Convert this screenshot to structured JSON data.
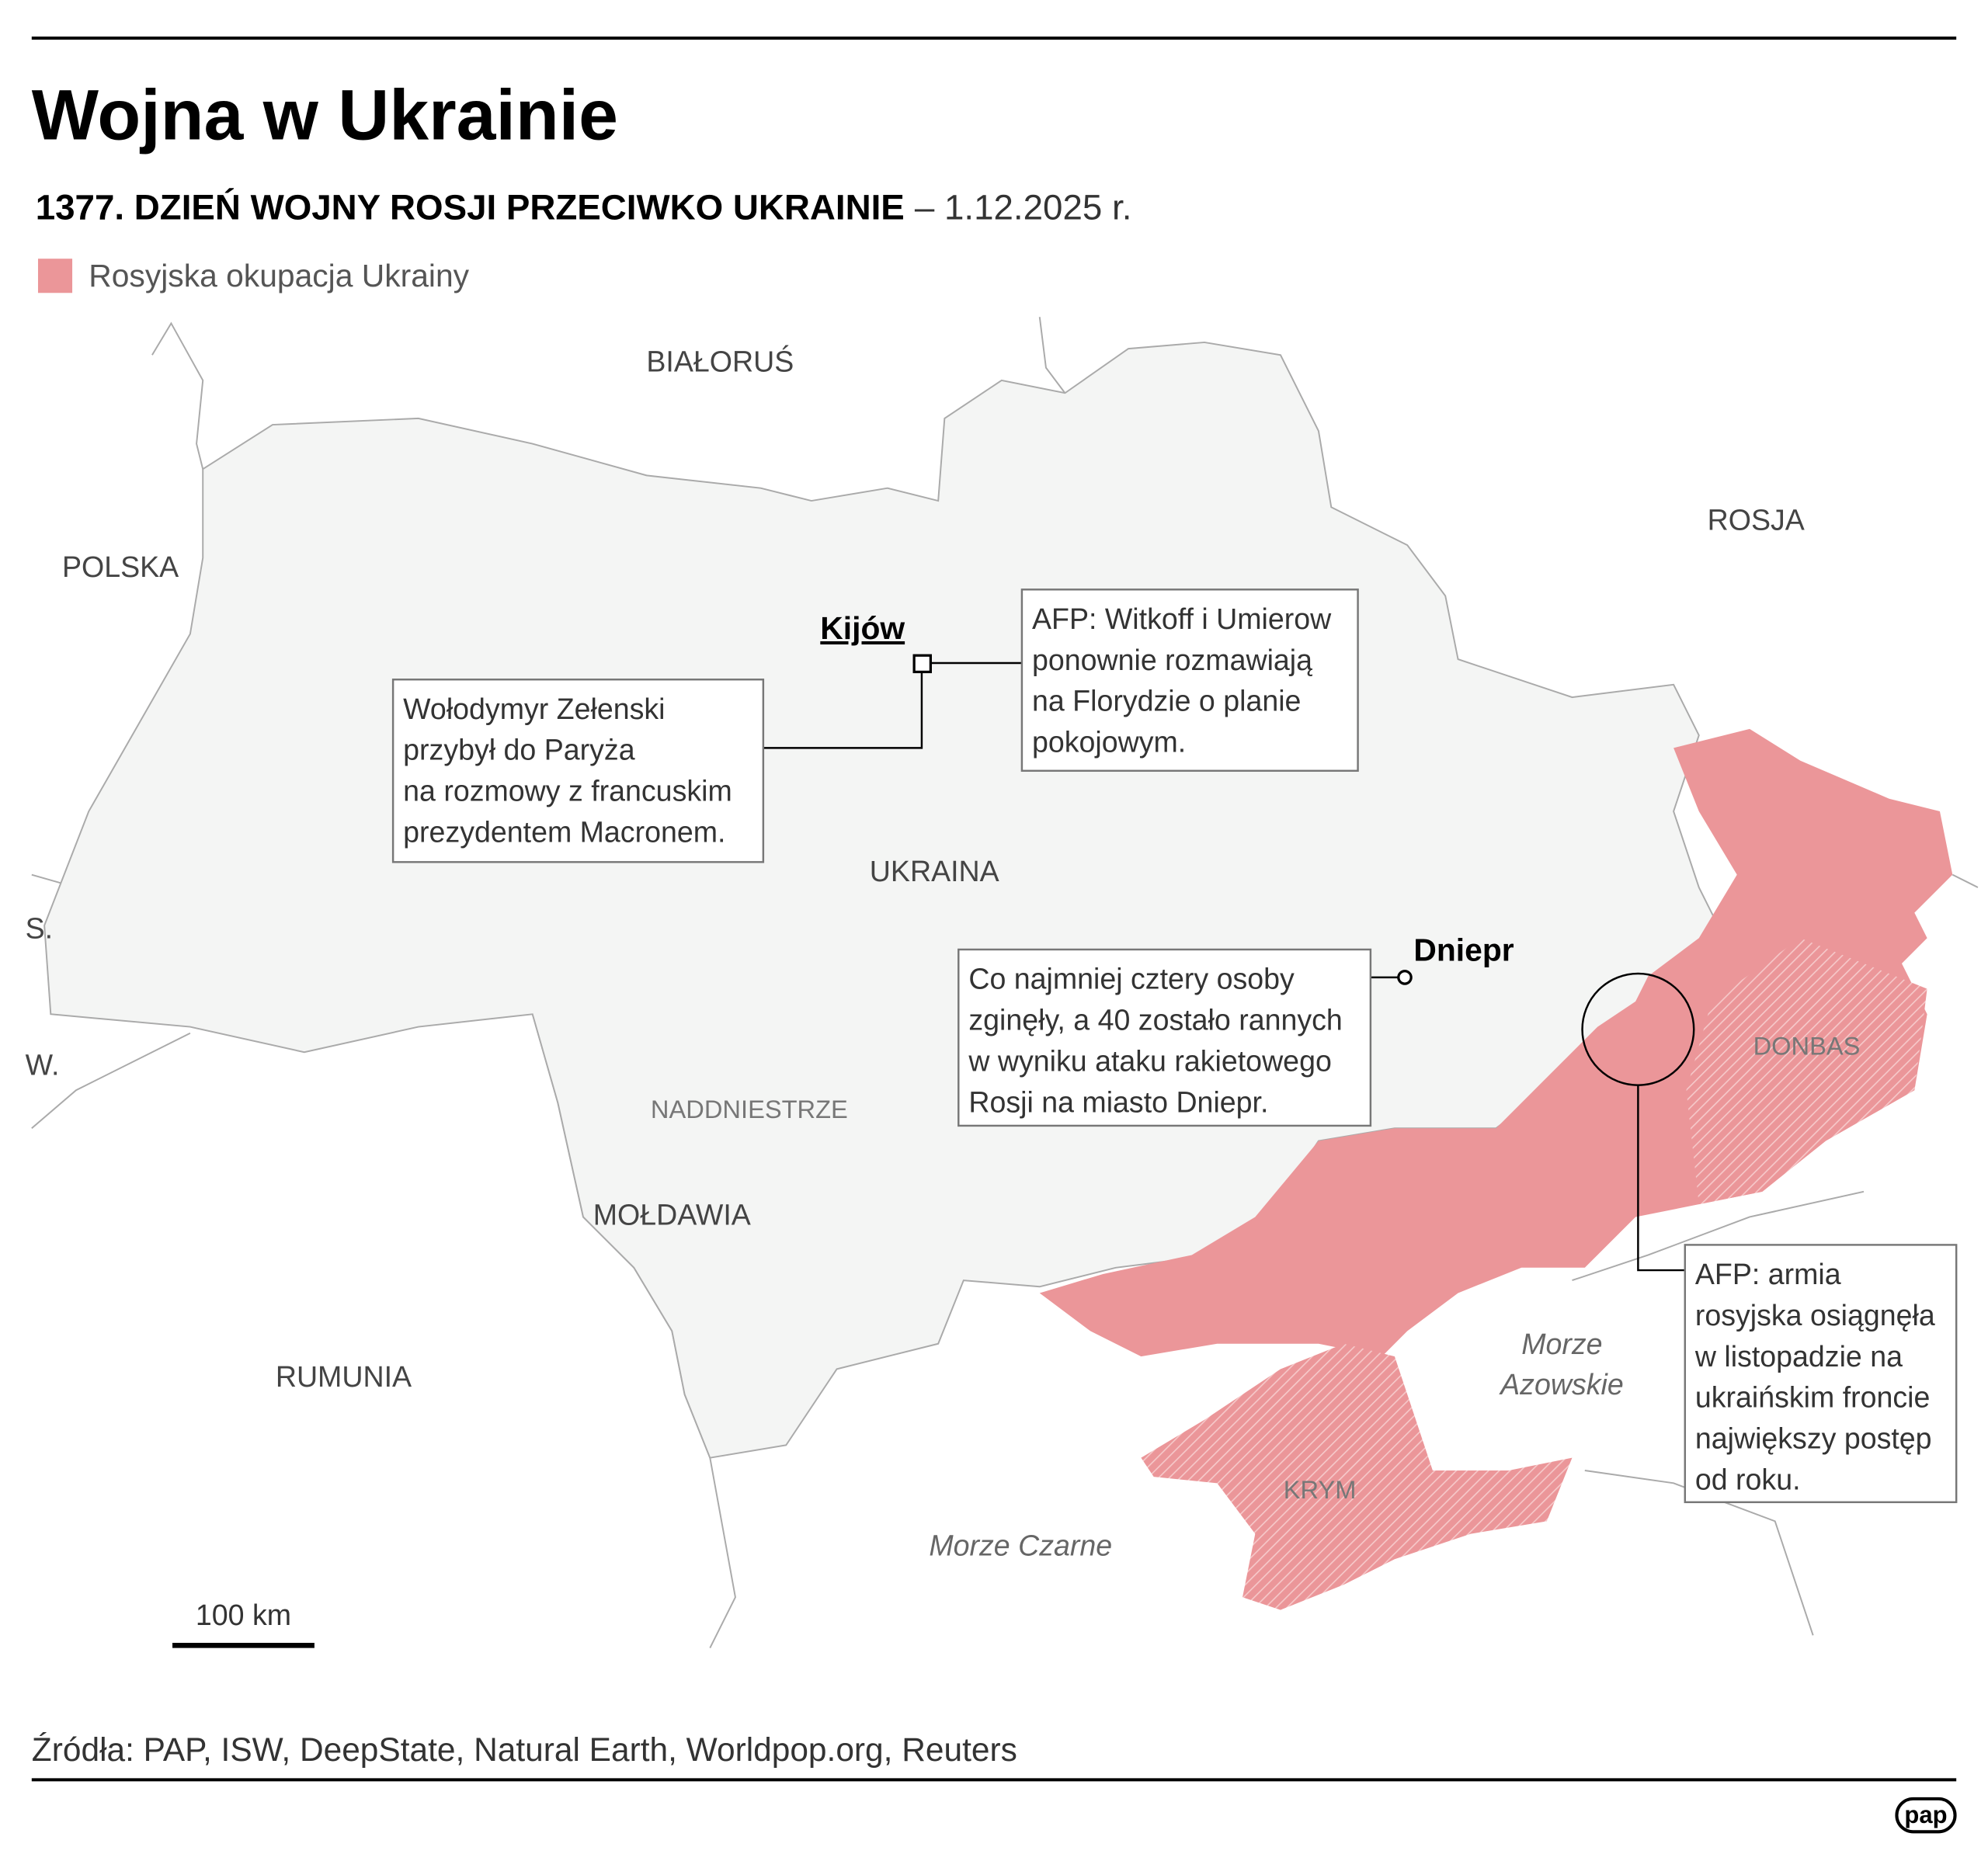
{
  "header": {
    "title": "Wojna w Ukrainie",
    "subtitle": "1377. DZIEŃ WOJNY ROSJI PRZECIWKO UKRAINIE",
    "date": "– 1.12.2025 r."
  },
  "legend": {
    "label": "Rosyjska okupacja Ukrainy",
    "color": "#eb9699"
  },
  "map": {
    "countries": [
      "BIAŁORUŚ",
      "ROSJA",
      "POLSKA",
      "UKRAINA",
      "S.",
      "W.",
      "MOŁDAWIA",
      "RUMUNIA"
    ],
    "regions": [
      "NADDNIESTRZE",
      "DONBAS",
      "KRYM"
    ],
    "seas": [
      [
        "Morze",
        "Azowskie"
      ],
      [
        "Morze Czarne"
      ]
    ],
    "cities": [
      "Kijów",
      "Dniepr"
    ]
  },
  "annotations": [
    {
      "lines": [
        "AFP: Witkoff i Umierow",
        "ponownie rozmawiają",
        "na Florydzie o planie",
        "pokojowym."
      ]
    },
    {
      "lines": [
        "Wołodymyr Zełenski",
        "przybył do Paryża",
        "na rozmowy z francuskim",
        "prezydentem Macronem."
      ]
    },
    {
      "lines": [
        "Co najmniej cztery osoby",
        "zginęły, a 40 zostało rannych",
        "w wyniku ataku rakietowego",
        "Rosji na miasto Dniepr."
      ]
    },
    {
      "lines": [
        "AFP: armia",
        "rosyjska osiągnęła",
        "w listopadzie na",
        "ukraińskim froncie",
        "największy postęp",
        "od roku."
      ]
    }
  ],
  "scale": {
    "label": "100 km"
  },
  "footer": {
    "source": "Źródła: PAP, ISW, DeepState, Natural Earth, Worldpop.org, Reuters",
    "logo": "pap"
  }
}
